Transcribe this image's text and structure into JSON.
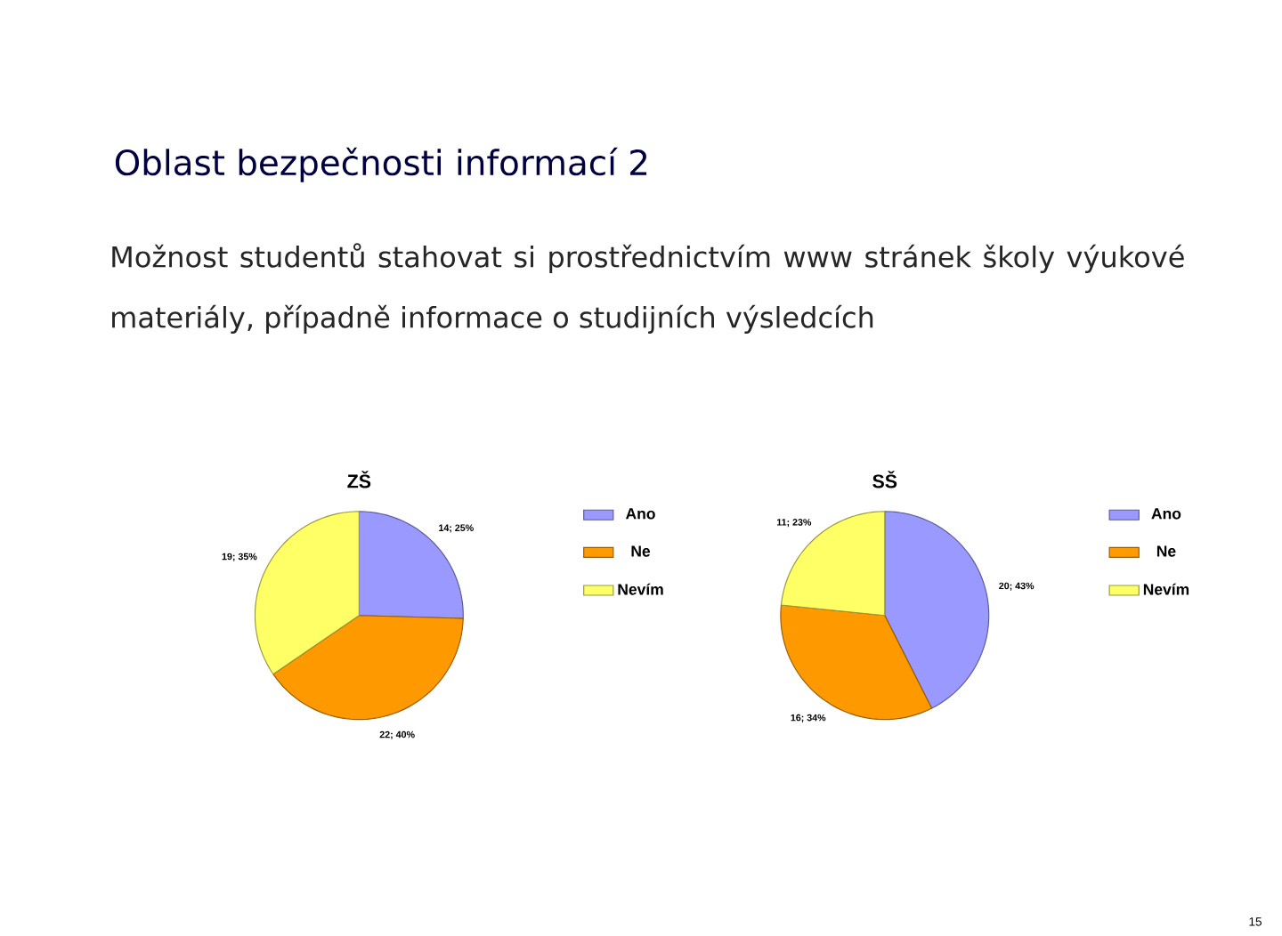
{
  "chart_data": [
    {
      "type": "pie",
      "title": "ZŠ",
      "categories": [
        "Ano",
        "Ne",
        "Nevím"
      ],
      "values": [
        14,
        22,
        19
      ],
      "value_labels": [
        "14; 25%",
        "22; 40%",
        "19; 35%"
      ],
      "colors": [
        "#9999ff",
        "#ff9900",
        "#ffff66"
      ],
      "legend": "right",
      "annotations": [
        "Oblast bezpečnosti informací  2",
        "Možnost studentů stahovat si prostřednictvím www stránek školy výukové materiály, případně informace o studijních výsledcích",
        "15"
      ]
    },
    {
      "type": "pie",
      "title": "SŠ",
      "categories": [
        "Ano",
        "Ne",
        "Nevím"
      ],
      "values": [
        20,
        16,
        11
      ],
      "value_labels": [
        "20; 43%",
        "16; 34%",
        "11; 23%"
      ],
      "colors": [
        "#9999ff",
        "#ff9900",
        "#ffff66"
      ],
      "legend": "right"
    }
  ]
}
